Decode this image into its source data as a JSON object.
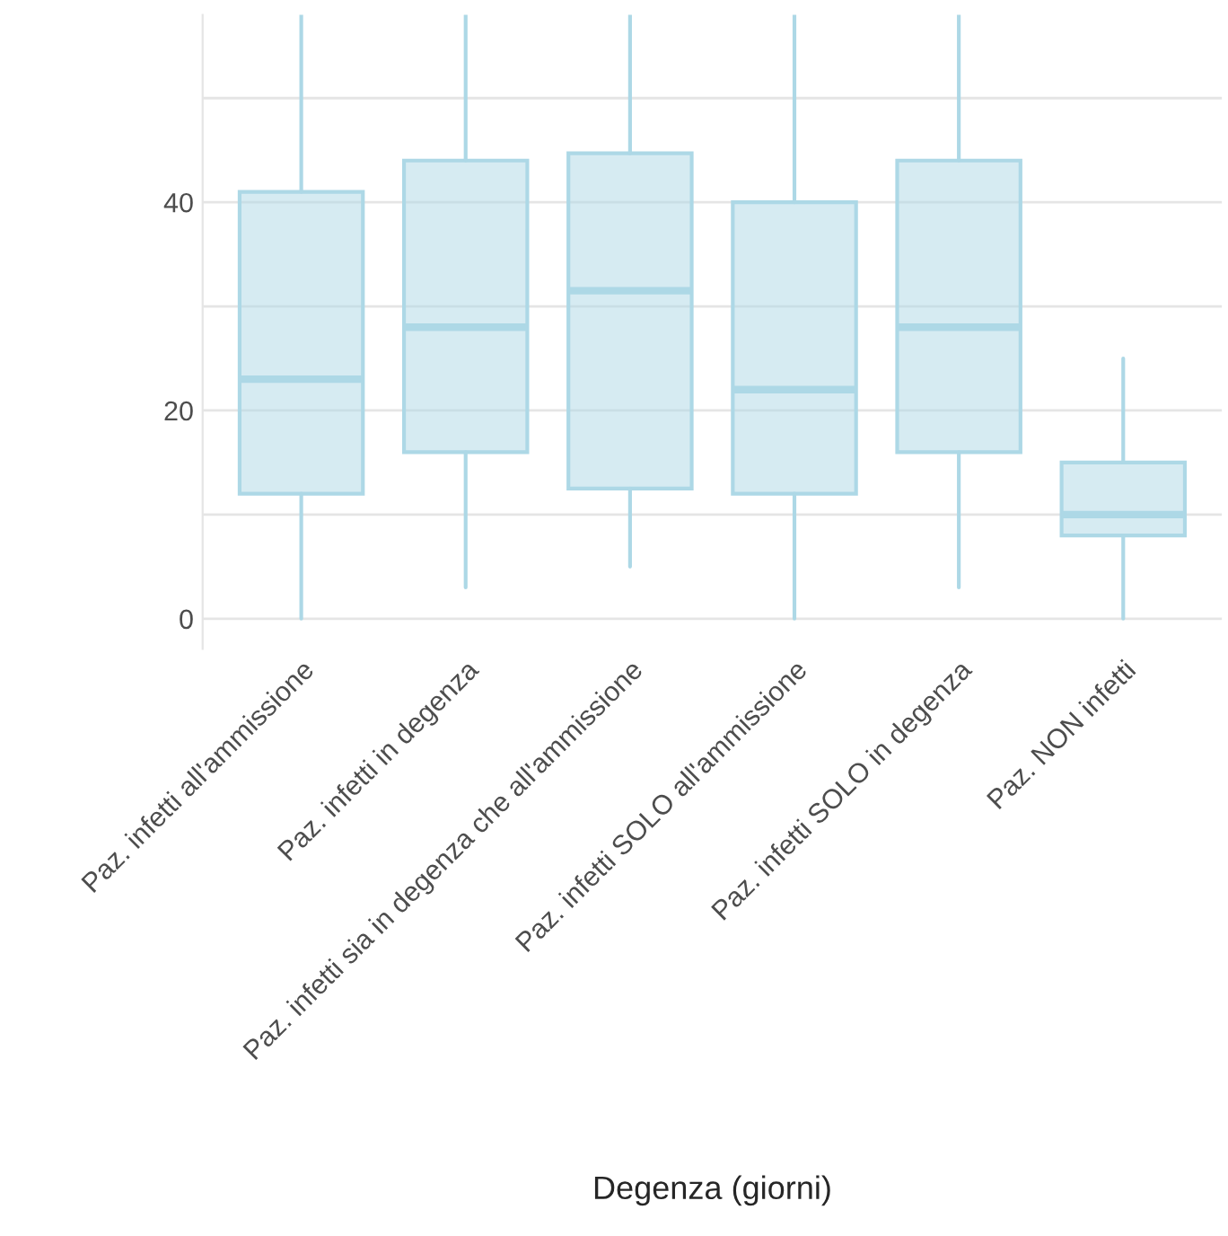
{
  "chart_data": {
    "type": "box",
    "xlabel": "Degenza (giorni)",
    "categories": [
      "Paz. infetti all'ammissione",
      "Paz. infetti in degenza",
      "Paz. infetti sia in degenza che all'ammissione",
      "Paz. infetti SOLO all'ammissione",
      "Paz. infetti SOLO in degenza",
      "Paz. NON infetti"
    ],
    "series": [
      {
        "color": "#add8e6",
        "boxes": [
          {
            "low": 0,
            "q1": 12,
            "median": 23,
            "q3": 41,
            "high": 58
          },
          {
            "low": 3,
            "q1": 16,
            "median": 28,
            "q3": 44,
            "high": 58
          },
          {
            "low": 5,
            "q1": 12.5,
            "median": 31.5,
            "q3": 44.7,
            "high": 58
          },
          {
            "low": 0,
            "q1": 12,
            "median": 22,
            "q3": 40,
            "high": 58
          },
          {
            "low": 3,
            "q1": 16,
            "median": 28,
            "q3": 44,
            "high": 58
          },
          {
            "low": 0,
            "q1": 8,
            "median": 10,
            "q3": 15,
            "high": 25
          }
        ]
      }
    ],
    "ylim": [
      -2.9,
      58
    ],
    "yticks": [
      0,
      {
        "value": 10,
        "label": null
      },
      20,
      {
        "value": 30,
        "label": null
      },
      40,
      {
        "value": 50,
        "label": null
      }
    ],
    "grid": "y"
  }
}
